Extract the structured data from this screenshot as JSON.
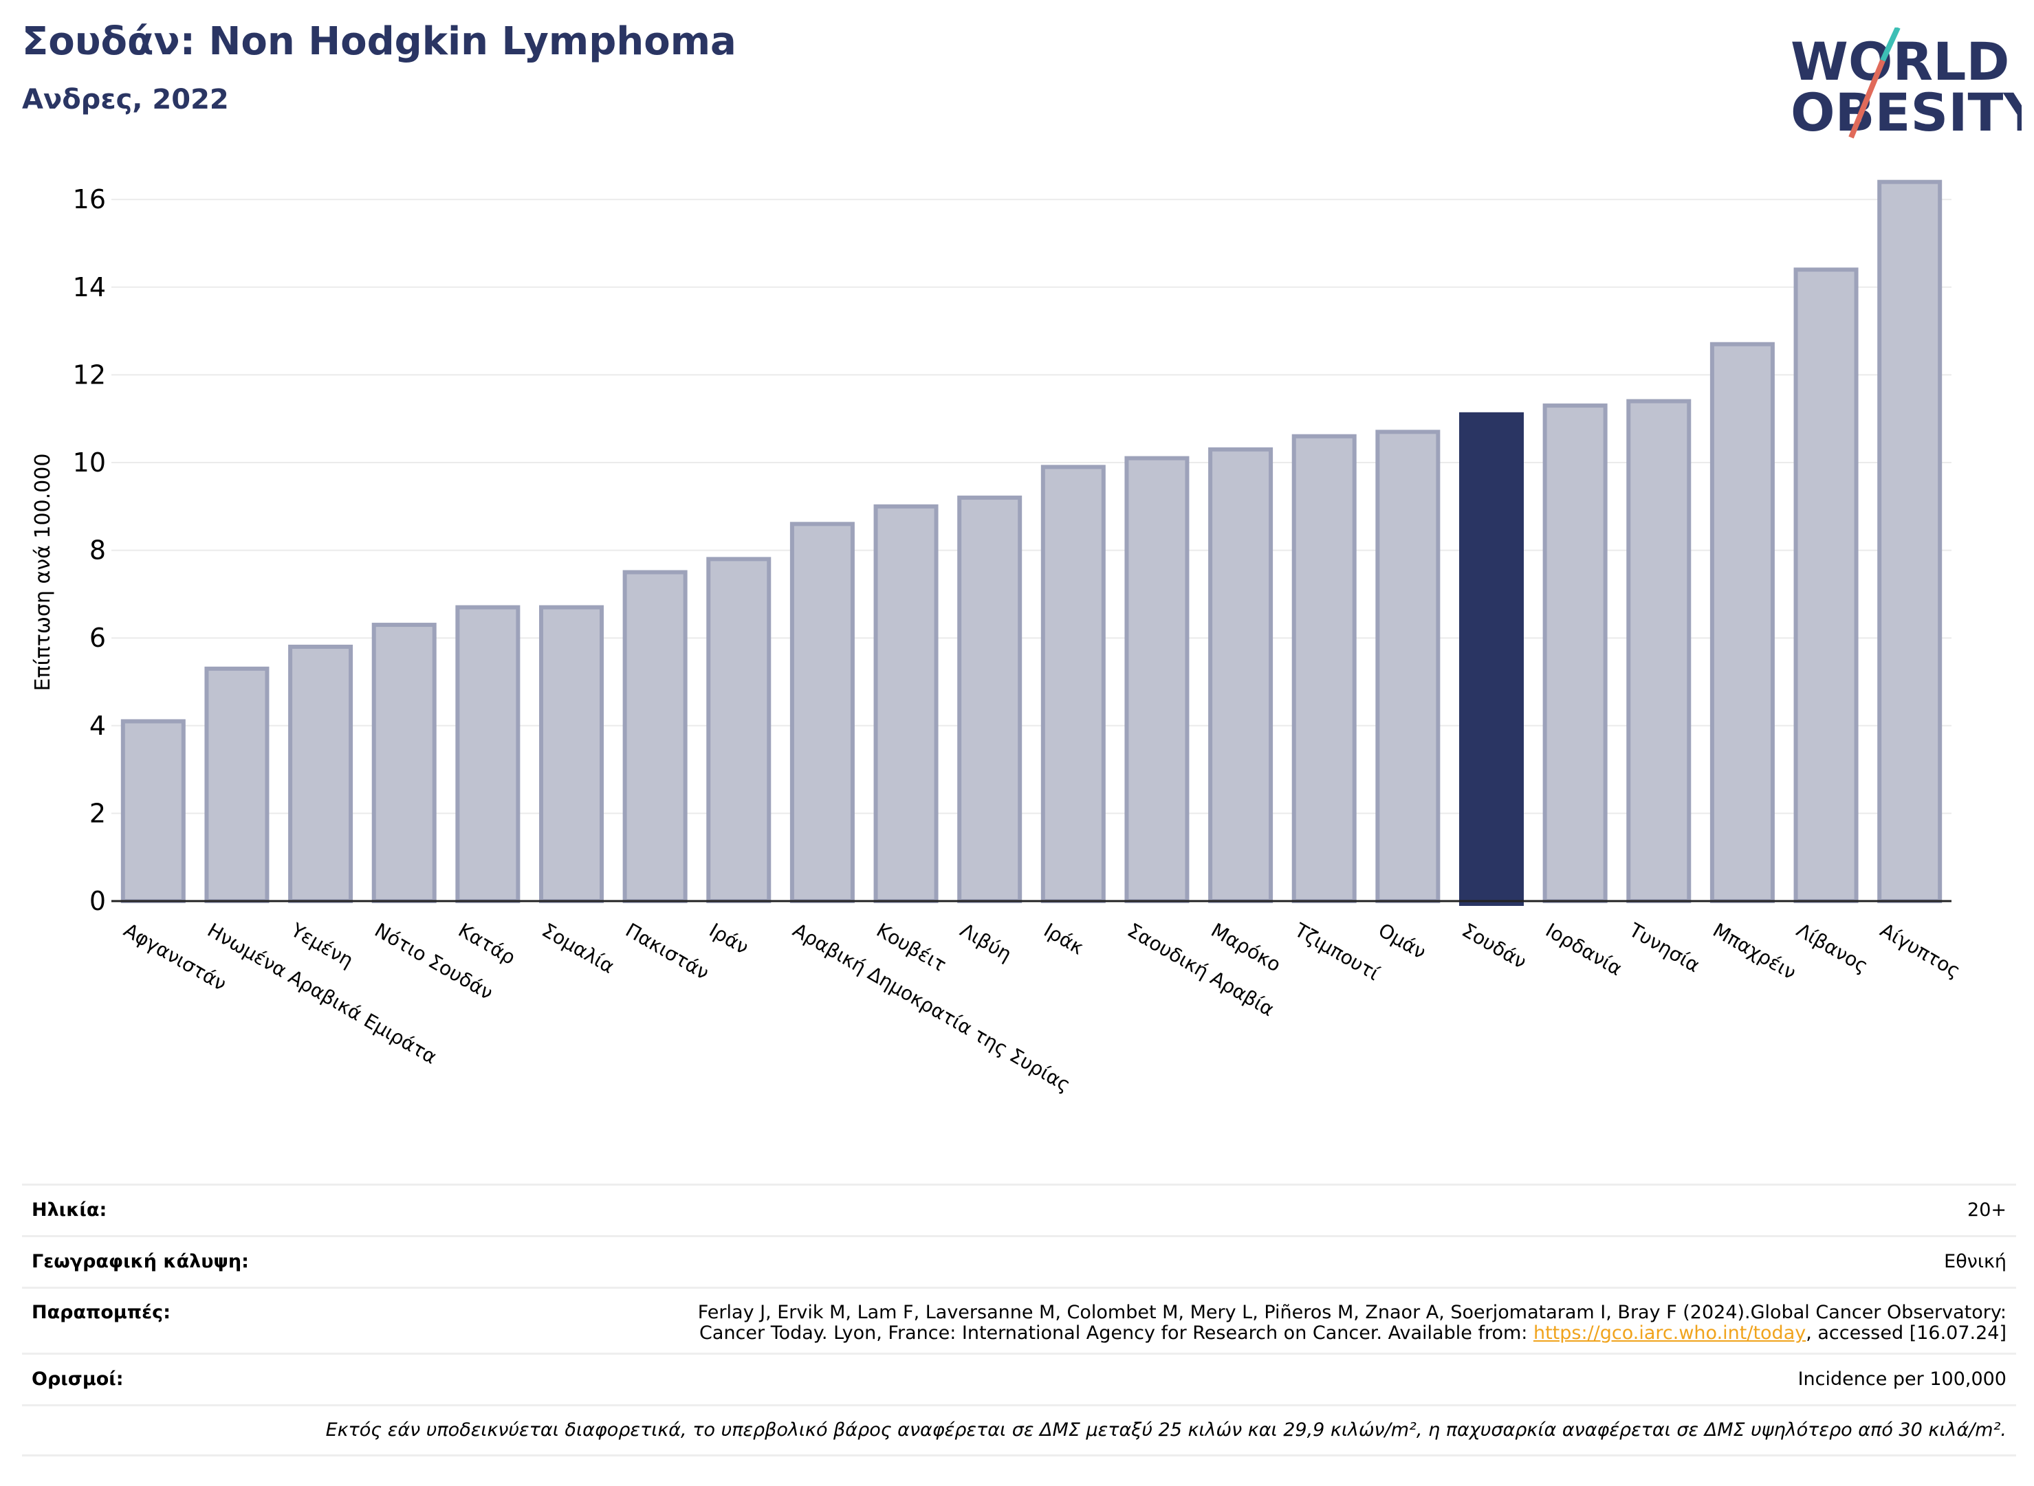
{
  "header": {
    "title": "Σουδάν: Non Hodgkin Lymphoma",
    "subtitle": "Ανδρες, 2022"
  },
  "logo": {
    "line1": "WORLD",
    "line2": "OBESITY",
    "icon": "world-obesity-logo"
  },
  "colors": {
    "bar": "#bfc2d0",
    "bar_border": "#9da2ba",
    "highlight": "#2a3563",
    "title": "#2a3563",
    "link": "#f0a31c"
  },
  "chart_data": {
    "type": "bar",
    "ylabel": "Επίπτωση ανά 100.000",
    "ylim": [
      0,
      17
    ],
    "yticks": [
      0,
      2,
      4,
      6,
      8,
      10,
      12,
      14,
      16
    ],
    "grid": true,
    "highlight": "Σουδάν",
    "categories": [
      "Αφγανιστάν",
      "Ηνωμένα Αραβικά Εμιράτα",
      "Υεμένη",
      "Νότιο Σουδάν",
      "Κατάρ",
      "Σομαλία",
      "Πακιστάν",
      "Ιράν",
      "Αραβική Δημοκρατία της Συρίας",
      "Κουβέιτ",
      "Λιβύη",
      "Ιράκ",
      "Σαουδική Αραβία",
      "Μαρόκο",
      "Τζιμπουτί",
      "Ομάν",
      "Σουδάν",
      "Ιορδανία",
      "Τυνησία",
      "Μπαχρέιν",
      "Λίβανος",
      "Αίγυπτος"
    ],
    "values": [
      4.1,
      5.3,
      5.8,
      6.3,
      6.7,
      6.7,
      7.5,
      7.8,
      8.6,
      9.0,
      9.2,
      9.9,
      10.1,
      10.3,
      10.6,
      10.7,
      11.1,
      11.3,
      11.4,
      12.7,
      14.4,
      16.4
    ]
  },
  "meta": {
    "age_label": "Ηλικία:",
    "age_value": "20+",
    "coverage_label": "Γεωγραφική κάλυψη:",
    "coverage_value": "Εθνική",
    "refs_label": "Παραπομπές:",
    "refs_line1": "Ferlay J, Ervik M, Lam F, Laversanne M, Colombet M, Mery L, Piñeros M, Znaor A, Soerjomataram I, Bray F (2024).Global Cancer Observatory:",
    "refs_line2_pre": "Cancer Today. Lyon, France: International Agency for Research on Cancer. Available from: ",
    "refs_link": "https://gco.iarc.who.int/today",
    "refs_line2_post": ", accessed [16.07.24]",
    "defs_label": "Ορισμοί:",
    "defs_value": "Incidence per 100,000",
    "footnote": "Εκτός εάν υποδεικνύεται διαφορετικά, το υπερβολικό βάρος αναφέρεται σε ΔΜΣ μεταξύ 25 κιλών και 29,9 κιλών/m², η παχυσαρκία αναφέρεται σε ΔΜΣ υψηλότερο από 30 κιλά/m²."
  }
}
